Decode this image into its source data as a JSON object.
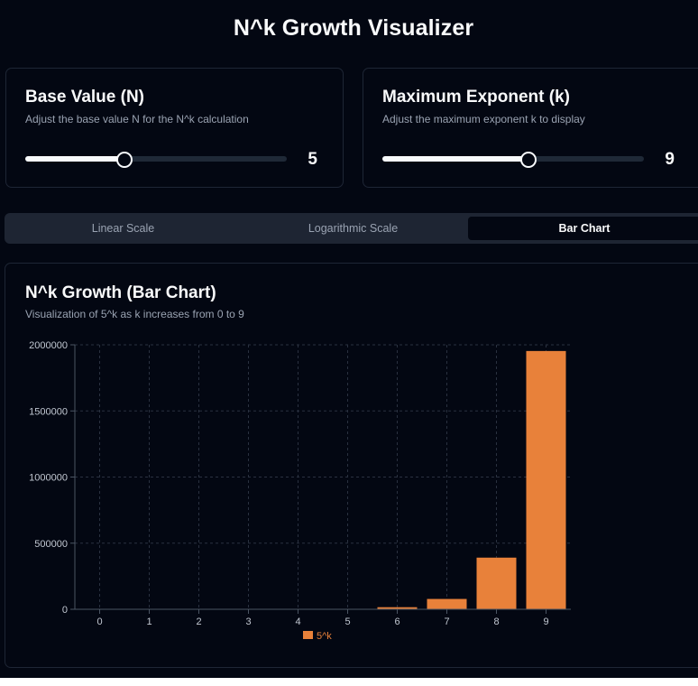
{
  "header": {
    "title": "N^k Growth Visualizer"
  },
  "controls": {
    "base": {
      "title": "Base Value (N)",
      "description": "Adjust the base value N for the N^k calculation",
      "value": "5",
      "fraction": 0.38
    },
    "exponent": {
      "title": "Maximum Exponent (k)",
      "description": "Adjust the maximum exponent k to display",
      "value": "9",
      "fraction": 0.56
    }
  },
  "tabs": [
    {
      "label": "Linear Scale",
      "active": false
    },
    {
      "label": "Logarithmic Scale",
      "active": false
    },
    {
      "label": "Bar Chart",
      "active": true
    }
  ],
  "chart_panel": {
    "title": "N^k Growth (Bar Chart)",
    "subtitle": "Visualization of 5^k as k increases from 0 to 9"
  },
  "colors": {
    "bar": "#e8813a",
    "grid": "#2a3140",
    "axis": "#4b5563",
    "tick_text": "#c2c8d2"
  },
  "chart_data": {
    "type": "bar",
    "categories": [
      "0",
      "1",
      "2",
      "3",
      "4",
      "5",
      "6",
      "7",
      "8",
      "9"
    ],
    "series": [
      {
        "name": "5^k",
        "values": [
          1,
          5,
          25,
          125,
          625,
          3125,
          15625,
          78125,
          390625,
          1953125
        ]
      }
    ],
    "yticks": [
      "0",
      "500000",
      "1000000",
      "1500000",
      "2000000"
    ],
    "ylim": [
      0,
      2000000
    ],
    "grid": true,
    "legend": "bottom-center"
  }
}
